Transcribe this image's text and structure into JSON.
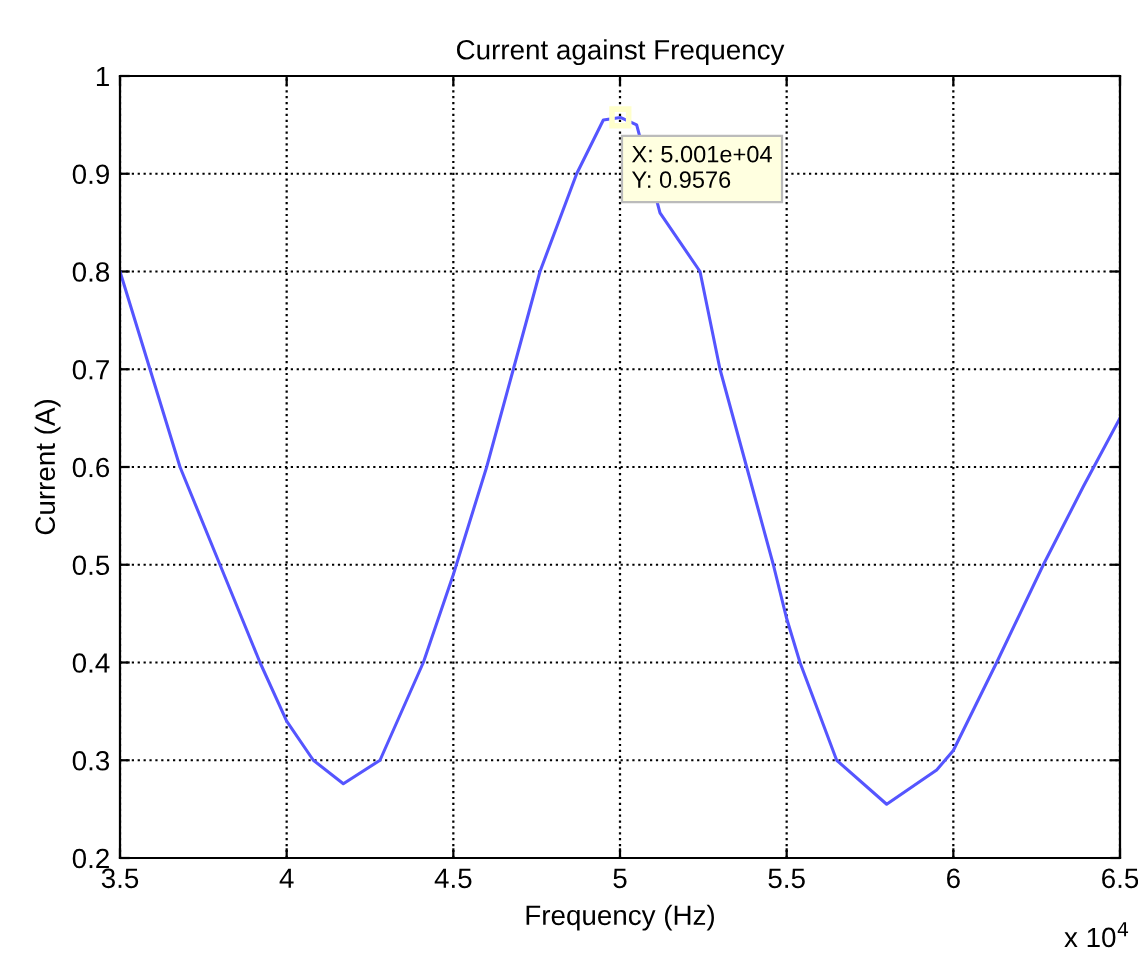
{
  "chart_data": {
    "type": "line",
    "title": "Current against Frequency",
    "xlabel": "Frequency (Hz)",
    "ylabel": "Current (A)",
    "x": [
      3.5,
      3.59,
      3.68,
      3.8,
      3.92,
      4.0,
      4.08,
      4.17,
      4.28,
      4.41,
      4.5,
      4.6,
      4.68,
      4.76,
      4.87,
      4.95,
      5.001,
      5.05,
      5.12,
      5.24,
      5.3,
      5.38,
      5.46,
      5.5,
      5.54,
      5.65,
      5.8,
      5.95,
      6.0,
      6.13,
      6.27,
      6.39,
      6.5
    ],
    "series": [
      {
        "color": "#5555ff",
        "values": [
          0.8,
          0.7,
          0.6,
          0.5,
          0.4,
          0.34,
          0.3,
          0.276,
          0.3,
          0.4,
          0.49,
          0.6,
          0.7,
          0.8,
          0.9,
          0.955,
          0.9576,
          0.95,
          0.86,
          0.8,
          0.7,
          0.6,
          0.5,
          0.445,
          0.4,
          0.3,
          0.255,
          0.29,
          0.31,
          0.4,
          0.5,
          0.58,
          0.65
        ]
      }
    ],
    "xlim": [
      3.5,
      6.5
    ],
    "xticks": [
      3.5,
      4,
      4.5,
      5,
      5.5,
      6,
      6.5
    ],
    "ylim": [
      0.2,
      1
    ],
    "yticks": [
      0.2,
      0.3,
      0.4,
      0.5,
      0.6,
      0.7,
      0.8,
      0.9,
      1
    ],
    "grid": true,
    "marker": "none",
    "line_style": "solid",
    "annotations": [
      {
        "text": "X: 5.001e+04\nY: 0.9576",
        "x": 5.001,
        "y": 0.9576
      },
      "x 10$^{4}$"
    ]
  }
}
